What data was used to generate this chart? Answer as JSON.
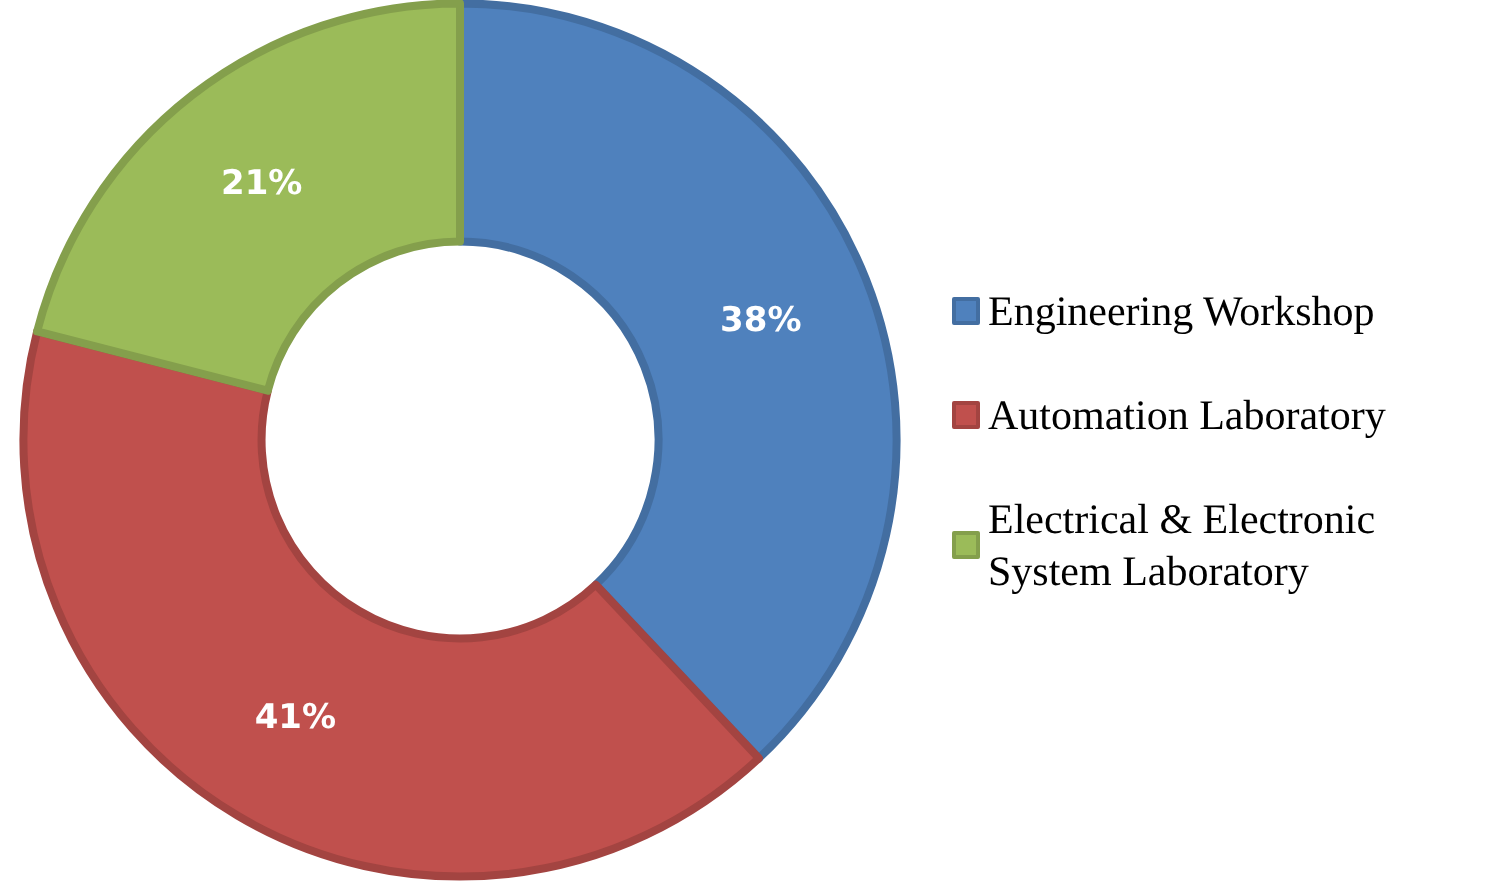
{
  "chart_data": {
    "type": "donut",
    "categories": [
      "Engineering Workshop",
      "Automation Laboratory",
      "Electrical & Electronic System Laboratory"
    ],
    "values": [
      38,
      41,
      21
    ],
    "colors": [
      "#4f81bd",
      "#c0504d",
      "#9bbb59"
    ],
    "value_labels": [
      "38%",
      "41%",
      "21%"
    ],
    "legend": "right"
  }
}
